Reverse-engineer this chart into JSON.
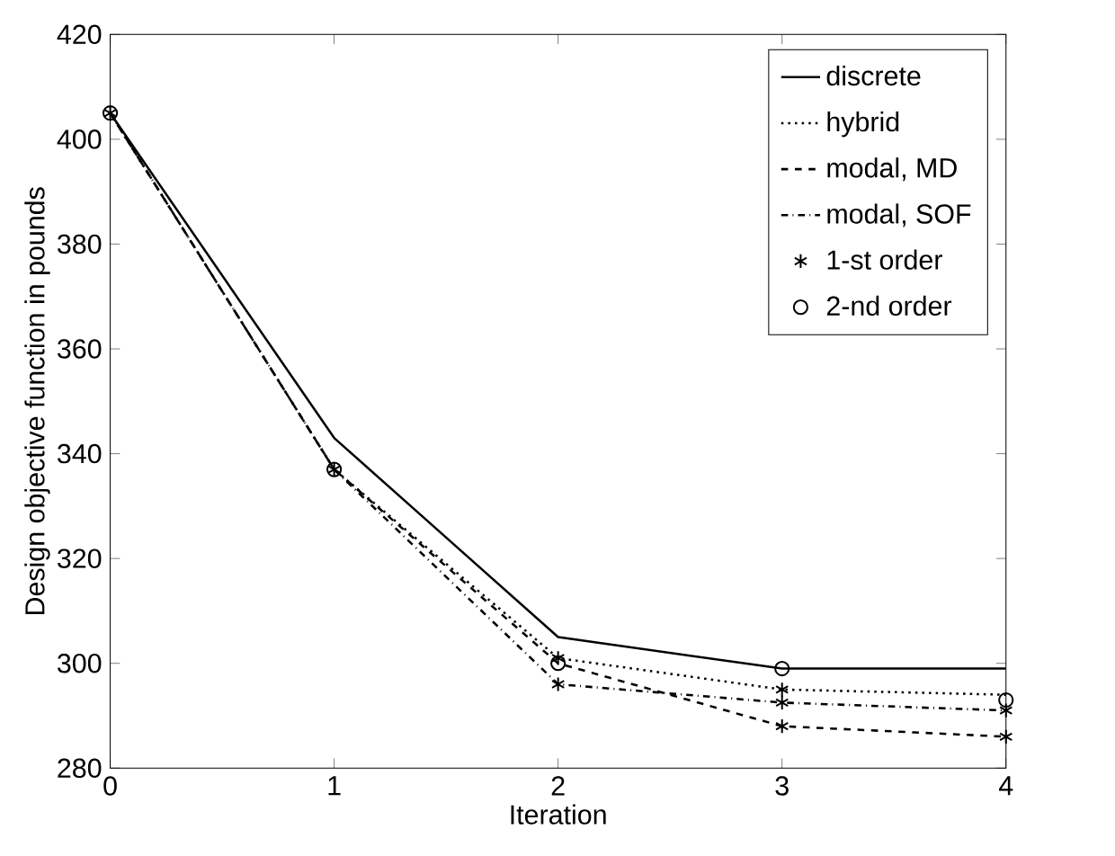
{
  "chart_data": {
    "type": "line",
    "xlabel": "Iteration",
    "ylabel": "Design objective function in pounds",
    "xlim": [
      0,
      4
    ],
    "ylim": [
      280,
      420
    ],
    "xticks": [
      0,
      1,
      2,
      3,
      4
    ],
    "yticks": [
      280,
      300,
      320,
      340,
      360,
      380,
      400,
      420
    ],
    "grid": false,
    "legend": "top right",
    "series": [
      {
        "name": "discrete",
        "color": "#000000",
        "type": "line",
        "line_style": "solid",
        "marker": "none",
        "x": [
          0,
          1,
          2,
          3,
          4
        ],
        "values": [
          405,
          343,
          305,
          299,
          299
        ]
      },
      {
        "name": "hybrid",
        "color": "#000000",
        "type": "line",
        "line_style": "dotted",
        "marker": "none",
        "x": [
          0,
          1,
          2,
          3,
          4
        ],
        "values": [
          405,
          337,
          301,
          295,
          294
        ]
      },
      {
        "name": "modal, MD",
        "color": "#000000",
        "type": "line",
        "line_style": "dashed",
        "marker": "none",
        "x": [
          0,
          1,
          2,
          3,
          4
        ],
        "values": [
          405,
          337,
          300,
          288,
          286
        ]
      },
      {
        "name": "modal, SOF",
        "color": "#000000",
        "type": "line",
        "line_style": "dashdot",
        "marker": "none",
        "x": [
          0,
          1,
          2,
          3,
          4
        ],
        "values": [
          405,
          337,
          296,
          292.5,
          291
        ]
      },
      {
        "name": "1-st order",
        "color": "#000000",
        "type": "scatter",
        "marker": "cross",
        "x": [
          2,
          2,
          3,
          3,
          3,
          4,
          4,
          0,
          1
        ],
        "values": [
          296,
          301,
          288,
          292.5,
          295,
          286,
          291,
          405,
          337
        ]
      },
      {
        "name": "2-nd order",
        "color": "#000000",
        "type": "scatter",
        "marker": "circle",
        "x": [
          2,
          3,
          4,
          0,
          1
        ],
        "values": [
          300,
          299,
          293,
          405,
          337
        ]
      }
    ]
  }
}
